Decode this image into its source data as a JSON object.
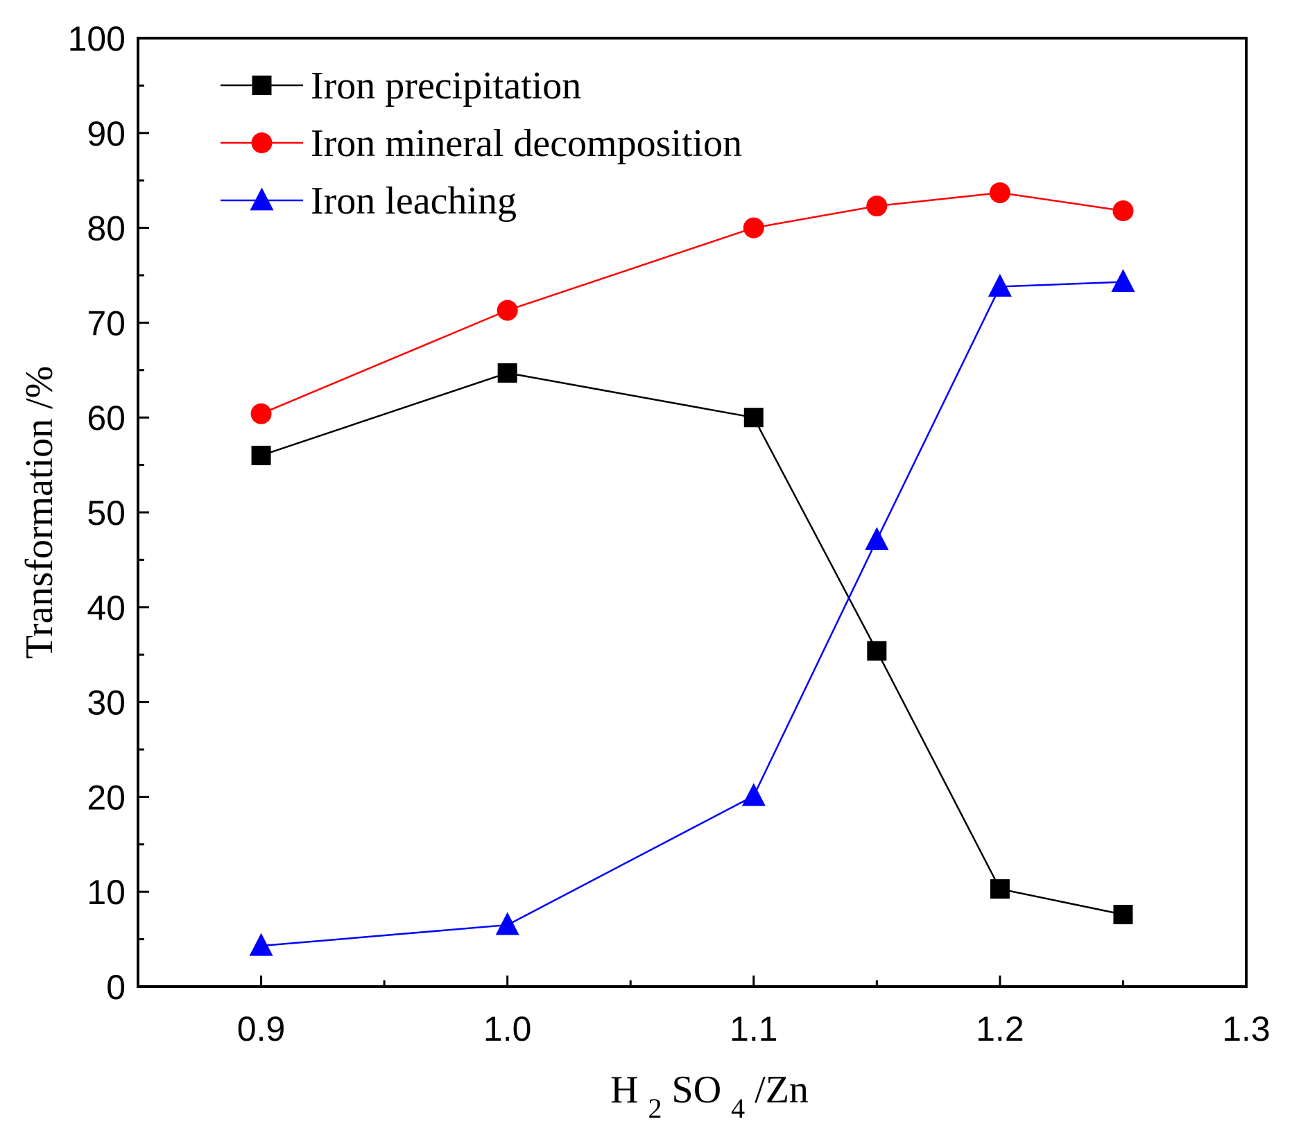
{
  "chart_data": {
    "type": "line",
    "title": "",
    "xlabel_parts": [
      "H",
      "2",
      "SO",
      "4",
      "/Zn"
    ],
    "ylabel": "Transformation /%",
    "xlim": [
      0.85,
      1.3
    ],
    "ylim": [
      0,
      100
    ],
    "x_ticks": [
      0.9,
      1.0,
      1.1,
      1.2,
      1.3
    ],
    "x_tick_labels": [
      "0.9",
      "1.0",
      "1.1",
      "1.2",
      "1.3"
    ],
    "y_ticks": [
      0,
      10,
      20,
      30,
      40,
      50,
      60,
      70,
      80,
      90,
      100
    ],
    "y_tick_labels": [
      "0",
      "10",
      "20",
      "30",
      "40",
      "50",
      "60",
      "70",
      "80",
      "90",
      "100"
    ],
    "grid": false,
    "legend_position": "top-left",
    "x": [
      0.9,
      1.0,
      1.1,
      1.15,
      1.2,
      1.25
    ],
    "series": [
      {
        "name": "Iron precipitation",
        "color": "#000000",
        "marker": "square",
        "values": [
          56.0,
          64.7,
          60.0,
          35.4,
          10.3,
          7.6
        ]
      },
      {
        "name": "Iron mineral decomposition",
        "color": "#ff0000",
        "marker": "circle",
        "values": [
          60.4,
          71.3,
          80.0,
          82.3,
          83.7,
          81.8
        ]
      },
      {
        "name": "Iron leaching",
        "color": "#0000ff",
        "marker": "triangle",
        "values": [
          4.3,
          6.5,
          20.1,
          47.1,
          73.8,
          74.3
        ]
      }
    ]
  }
}
